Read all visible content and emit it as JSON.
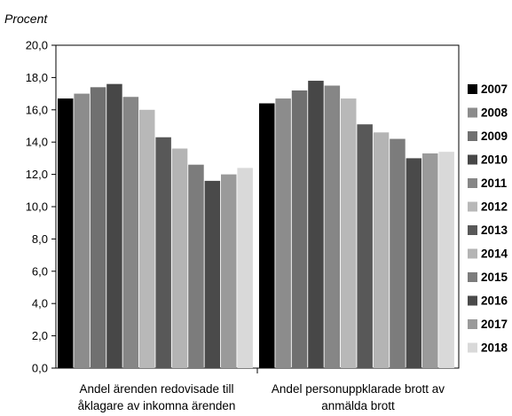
{
  "chart_data": {
    "type": "bar",
    "ylabel": "Procent",
    "ylim": [
      0,
      20
    ],
    "yticks": [
      "0,0",
      "2,0",
      "4,0",
      "6,0",
      "8,0",
      "10,0",
      "12,0",
      "14,0",
      "16,0",
      "18,0",
      "20,0"
    ],
    "categories": [
      [
        "Andel ärenden redovisade till",
        "åklagare av inkomna ärenden"
      ],
      [
        "Andel personuppklarade brott av",
        "anmälda brott"
      ]
    ],
    "legend_position": "right",
    "grid": false,
    "series": [
      {
        "name": "2007",
        "color": "#000000",
        "values": [
          16.7,
          16.4
        ]
      },
      {
        "name": "2008",
        "color": "#8c8c8c",
        "values": [
          17.0,
          16.7
        ]
      },
      {
        "name": "2009",
        "color": "#707070",
        "values": [
          17.4,
          17.2
        ]
      },
      {
        "name": "2010",
        "color": "#474747",
        "values": [
          17.6,
          17.8
        ]
      },
      {
        "name": "2011",
        "color": "#868686",
        "values": [
          16.8,
          17.5
        ]
      },
      {
        "name": "2012",
        "color": "#b8b8b8",
        "values": [
          16.0,
          16.7
        ]
      },
      {
        "name": "2013",
        "color": "#585858",
        "values": [
          14.3,
          15.1
        ]
      },
      {
        "name": "2014",
        "color": "#b4b4b4",
        "values": [
          13.6,
          14.6
        ]
      },
      {
        "name": "2015",
        "color": "#7c7c7c",
        "values": [
          12.6,
          14.2
        ]
      },
      {
        "name": "2016",
        "color": "#4a4a4a",
        "values": [
          11.6,
          13.0
        ]
      },
      {
        "name": "2017",
        "color": "#9a9a9a",
        "values": [
          12.0,
          13.3
        ]
      },
      {
        "name": "2018",
        "color": "#d9d9d9",
        "values": [
          12.4,
          13.4
        ]
      }
    ]
  }
}
